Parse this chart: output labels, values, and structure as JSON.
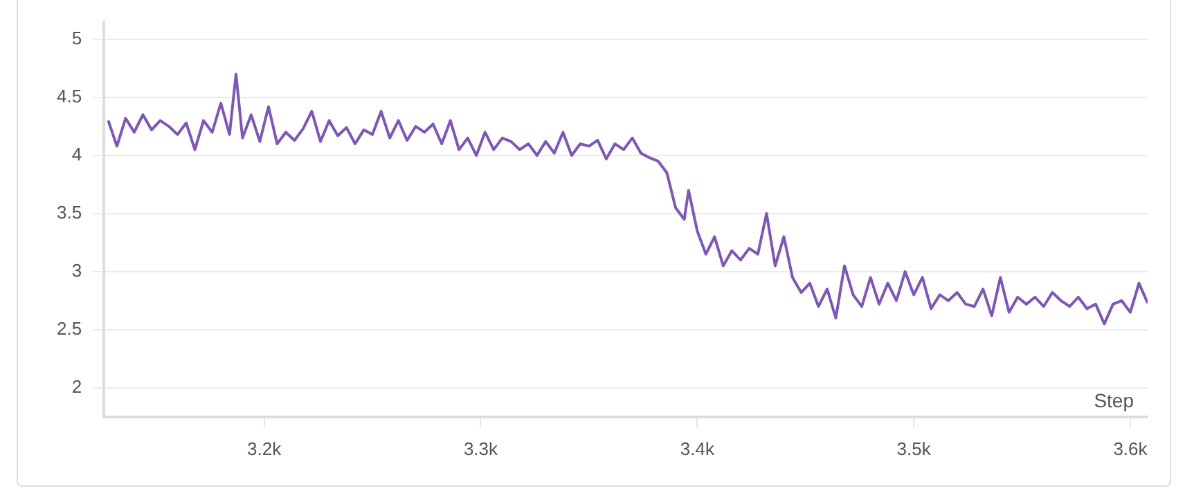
{
  "chart_data": {
    "type": "line",
    "xlabel": "Step",
    "xlim": [
      3126,
      3608
    ],
    "xticks": [
      {
        "value": 3200,
        "label": "3.2k"
      },
      {
        "value": 3300,
        "label": "3.3k"
      },
      {
        "value": 3400,
        "label": "3.4k"
      },
      {
        "value": 3500,
        "label": "3.5k"
      },
      {
        "value": 3600,
        "label": "3.6k"
      }
    ],
    "ylim": [
      1.75,
      5.15
    ],
    "yticks": [
      2,
      2.5,
      3,
      3.5,
      4,
      4.5,
      5
    ],
    "grid": "y",
    "legend": false,
    "marker": "none",
    "line_style": "solid",
    "x": [
      3128,
      3132,
      3136,
      3140,
      3144,
      3148,
      3152,
      3156,
      3160,
      3164,
      3168,
      3172,
      3176,
      3180,
      3184,
      3187,
      3190,
      3194,
      3198,
      3202,
      3206,
      3210,
      3214,
      3218,
      3222,
      3226,
      3230,
      3234,
      3238,
      3242,
      3246,
      3250,
      3254,
      3258,
      3262,
      3266,
      3270,
      3274,
      3278,
      3282,
      3286,
      3290,
      3294,
      3298,
      3302,
      3306,
      3310,
      3314,
      3318,
      3322,
      3326,
      3330,
      3334,
      3338,
      3342,
      3346,
      3350,
      3354,
      3358,
      3362,
      3366,
      3370,
      3374,
      3378,
      3382,
      3386,
      3390,
      3394,
      3396,
      3400,
      3404,
      3408,
      3412,
      3416,
      3420,
      3424,
      3428,
      3432,
      3436,
      3440,
      3444,
      3448,
      3452,
      3456,
      3460,
      3464,
      3468,
      3472,
      3476,
      3480,
      3484,
      3488,
      3492,
      3496,
      3500,
      3504,
      3508,
      3512,
      3516,
      3520,
      3524,
      3528,
      3532,
      3536,
      3540,
      3544,
      3548,
      3552,
      3556,
      3560,
      3564,
      3568,
      3572,
      3576,
      3580,
      3584,
      3588,
      3592,
      3596,
      3600,
      3604,
      3608
    ],
    "series": [
      {
        "color": "#7e57b5",
        "values": [
          4.3,
          4.08,
          4.32,
          4.2,
          4.35,
          4.22,
          4.3,
          4.25,
          4.18,
          4.28,
          4.05,
          4.3,
          4.2,
          4.45,
          4.18,
          4.7,
          4.15,
          4.35,
          4.12,
          4.42,
          4.1,
          4.2,
          4.13,
          4.23,
          4.38,
          4.12,
          4.3,
          4.17,
          4.24,
          4.1,
          4.22,
          4.18,
          4.38,
          4.15,
          4.3,
          4.13,
          4.25,
          4.2,
          4.27,
          4.1,
          4.3,
          4.05,
          4.15,
          4.0,
          4.2,
          4.05,
          4.15,
          4.12,
          4.05,
          4.1,
          4.0,
          4.12,
          4.02,
          4.2,
          4.0,
          4.1,
          4.08,
          4.13,
          3.97,
          4.1,
          4.05,
          4.15,
          4.02,
          3.98,
          3.95,
          3.85,
          3.55,
          3.45,
          3.7,
          3.35,
          3.15,
          3.3,
          3.05,
          3.18,
          3.1,
          3.2,
          3.15,
          3.5,
          3.05,
          3.3,
          2.95,
          2.82,
          2.9,
          2.7,
          2.85,
          2.6,
          3.05,
          2.8,
          2.7,
          2.95,
          2.72,
          2.9,
          2.75,
          3.0,
          2.8,
          2.95,
          2.68,
          2.8,
          2.75,
          2.82,
          2.72,
          2.7,
          2.85,
          2.62,
          2.95,
          2.65,
          2.78,
          2.72,
          2.78,
          2.7,
          2.82,
          2.75,
          2.7,
          2.78,
          2.68,
          2.72,
          2.55,
          2.72,
          2.75,
          2.65,
          2.9,
          2.73
        ]
      }
    ]
  }
}
